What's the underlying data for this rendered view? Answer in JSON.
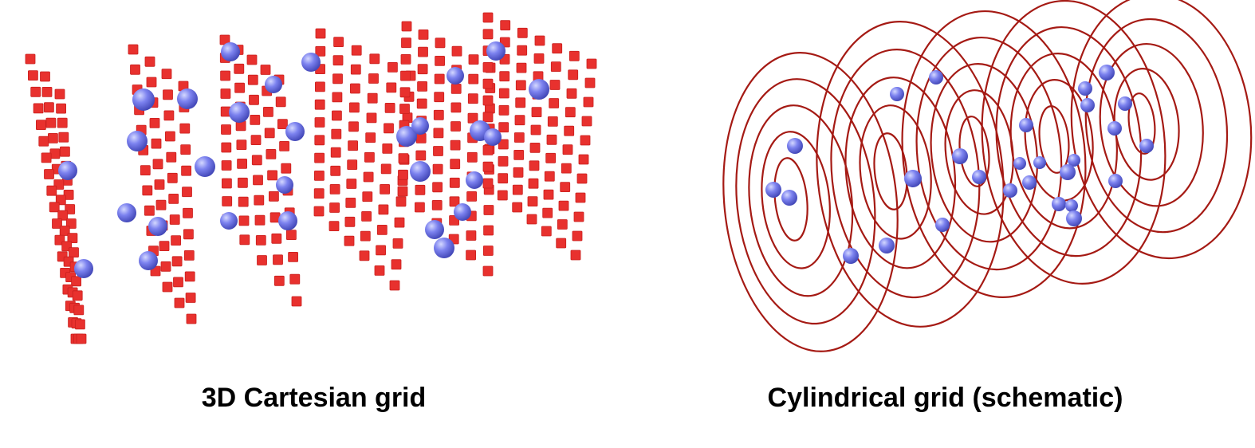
{
  "panels": {
    "cartesian": {
      "caption": "3D Cartesian grid"
    },
    "cylindrical": {
      "caption": "Cylindrical grid (schematic)"
    }
  },
  "colors": {
    "grid_cube": "#e8312e",
    "grid_cube_shade": "#c9201e",
    "ring": "#a51a14",
    "sphere_light": "#c6cbff",
    "sphere_mid": "#7a80ee",
    "sphere_dark": "#4a4fc0"
  }
}
